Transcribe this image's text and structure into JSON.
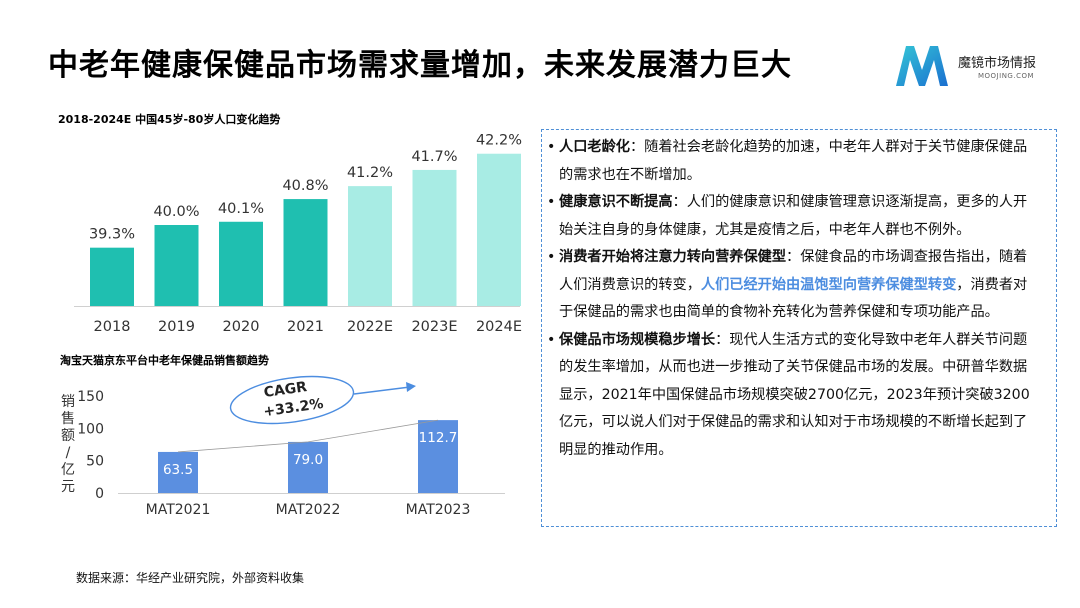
{
  "page": {
    "title": "中老年健康保健品市场需求量增加，未来发展潜力巨大",
    "source": "数据来源：华经产业研究院，外部资料收集"
  },
  "logo": {
    "name": "魔镜市场情报",
    "sub": "MOOJING.COM",
    "icon": "moojing-m-logo-icon"
  },
  "colors": {
    "bar_dark": "#1fbfb0",
    "bar_light": "#a8ece4",
    "bar_blue": "#5b8fe0",
    "accent": "#4c8de0"
  },
  "chart_data": [
    {
      "type": "bar",
      "title": "2018-2024E 中国45岁-80岁人口变化趋势",
      "categories": [
        "2018",
        "2019",
        "2020",
        "2021",
        "2022E",
        "2023E",
        "2024E"
      ],
      "values": [
        39.3,
        40.0,
        40.1,
        40.8,
        41.2,
        41.7,
        42.2
      ],
      "value_labels": [
        "39.3%",
        "40.0%",
        "40.1%",
        "40.8%",
        "41.2%",
        "41.7%",
        "42.2%"
      ],
      "estimated": [
        false,
        false,
        false,
        false,
        true,
        true,
        true
      ],
      "ylim": [
        37.5,
        42.5
      ],
      "xlabel": "",
      "ylabel": ""
    },
    {
      "type": "bar",
      "title": "淘宝天猫京东平台中老年保健品销售额趋势",
      "categories": [
        "MAT2021",
        "MAT2022",
        "MAT2023"
      ],
      "values": [
        63.5,
        79.0,
        112.7
      ],
      "value_labels": [
        "63.5",
        "79.0",
        "112.7"
      ],
      "ylim": [
        0,
        150
      ],
      "yticks": [
        "150",
        "100",
        "50",
        "0"
      ],
      "ytick_values": [
        150,
        100,
        50,
        0
      ],
      "ylabel": "销售额/亿元",
      "annotation": {
        "label": "CAGR",
        "value": "+33.2%"
      }
    }
  ],
  "points": [
    {
      "head": "人口老龄化",
      "text": "：随着社会老龄化趋势的加速，中老年人群对于关节健康保健品的需求也在不断增加。"
    },
    {
      "head": "健康意识不断提高",
      "text": "：人们的健康意识和健康管理意识逐渐提高，更多的人开始关注自身的身体健康，尤其是疫情之后，中老年人群也不例外。"
    },
    {
      "head": "消费者开始将注意力转向营养保健型",
      "text_a": "：保健食品的市场调查报告指出，随着人们消费意识的转变，",
      "highlight": "人们已经开始由温饱型向营养保健型转变",
      "text_b": "，消费者对于保健品的需求也由简单的食物补充转化为营养保健和专项功能产品。"
    },
    {
      "head": "保健品市场规模稳步增长",
      "text": "：现代人生活方式的变化导致中老年人群关节问题的发生率增加，从而也进一步推动了关节保健品市场的发展。中研普华数据显示，2021年中国保健品市场规模突破2700亿元，2023年预计突破3200亿元，可以说人们对于保健品的需求和认知对于市场规模的不断增长起到了明显的推动作用。"
    }
  ]
}
